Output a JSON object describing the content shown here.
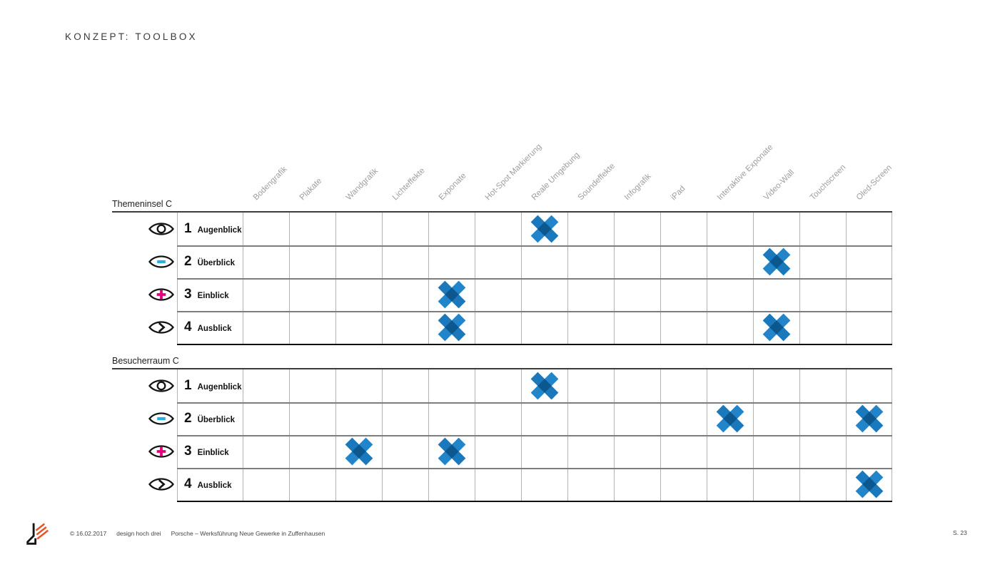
{
  "slide": {
    "title": "KONZEPT: TOOLBOX"
  },
  "matrix": {
    "columns": [
      "Bodengrafik",
      "Plakate",
      "Wandgrafik",
      "Lichteffekte",
      "Exponate",
      "Hot-Spot Markierung",
      "Reale Umgebung",
      "Soundeffekte",
      "Infografik",
      "iPad",
      "Interaktive Exponate",
      "Video-Wall",
      "Touchscreen",
      "Oled-Screen"
    ],
    "row_levels": [
      {
        "num": "1",
        "label": "Augenblick",
        "icon": "eye-open-icon"
      },
      {
        "num": "2",
        "label": "Überblick",
        "icon": "eye-minus-icon"
      },
      {
        "num": "3",
        "label": "Einblick",
        "icon": "eye-plus-icon"
      },
      {
        "num": "4",
        "label": "Ausblick",
        "icon": "eye-arrow-icon"
      }
    ],
    "sections": [
      {
        "title": "Themeninsel C",
        "marks": [
          [
            "Reale Umgebung"
          ],
          [
            "Video-Wall"
          ],
          [
            "Exponate"
          ],
          [
            "Exponate",
            "Video-Wall"
          ]
        ]
      },
      {
        "title": "Besucherraum C",
        "marks": [
          [
            "Reale Umgebung"
          ],
          [
            "Interaktive Exponate",
            "Oled-Screen"
          ],
          [
            "Wandgrafik",
            "Exponate"
          ],
          [
            "Oled-Screen"
          ]
        ]
      }
    ]
  },
  "footer": {
    "copyright": "© 16.02.2017",
    "studio": "design hoch drei",
    "project": "Porsche – Werksführung Neue Gewerke in Zuffenhausen",
    "page": "S. 23"
  },
  "colors": {
    "mark_blue": "#2385c9",
    "mark_blue2": "#1a78bc",
    "mark_overlap": "#0d578f",
    "eye_minus_cyan": "#2aaee4",
    "eye_plus_magenta": "#e5007d",
    "header_gray": "#9e9e9e",
    "logo_orange": "#e85427"
  },
  "chart_data": {
    "type": "table",
    "title": "KONZEPT: TOOLBOX",
    "columns": [
      "Bodengrafik",
      "Plakate",
      "Wandgrafik",
      "Lichteffekte",
      "Exponate",
      "Hot-Spot Markierung",
      "Reale Umgebung",
      "Soundeffekte",
      "Infografik",
      "iPad",
      "Interaktive Exponate",
      "Video-Wall",
      "Touchscreen",
      "Oled-Screen"
    ],
    "sections": [
      {
        "name": "Themeninsel C",
        "rows": [
          {
            "level": "1",
            "label": "Augenblick",
            "marked_columns": [
              "Reale Umgebung"
            ]
          },
          {
            "level": "2",
            "label": "Überblick",
            "marked_columns": [
              "Video-Wall"
            ]
          },
          {
            "level": "3",
            "label": "Einblick",
            "marked_columns": [
              "Exponate"
            ]
          },
          {
            "level": "4",
            "label": "Ausblick",
            "marked_columns": [
              "Exponate",
              "Video-Wall"
            ]
          }
        ]
      },
      {
        "name": "Besucherraum C",
        "rows": [
          {
            "level": "1",
            "label": "Augenblick",
            "marked_columns": [
              "Reale Umgebung"
            ]
          },
          {
            "level": "2",
            "label": "Überblick",
            "marked_columns": [
              "Interaktive Exponate",
              "Oled-Screen"
            ]
          },
          {
            "level": "3",
            "label": "Einblick",
            "marked_columns": [
              "Wandgrafik",
              "Exponate"
            ]
          },
          {
            "level": "4",
            "label": "Ausblick",
            "marked_columns": [
              "Oled-Screen"
            ]
          }
        ]
      }
    ]
  }
}
